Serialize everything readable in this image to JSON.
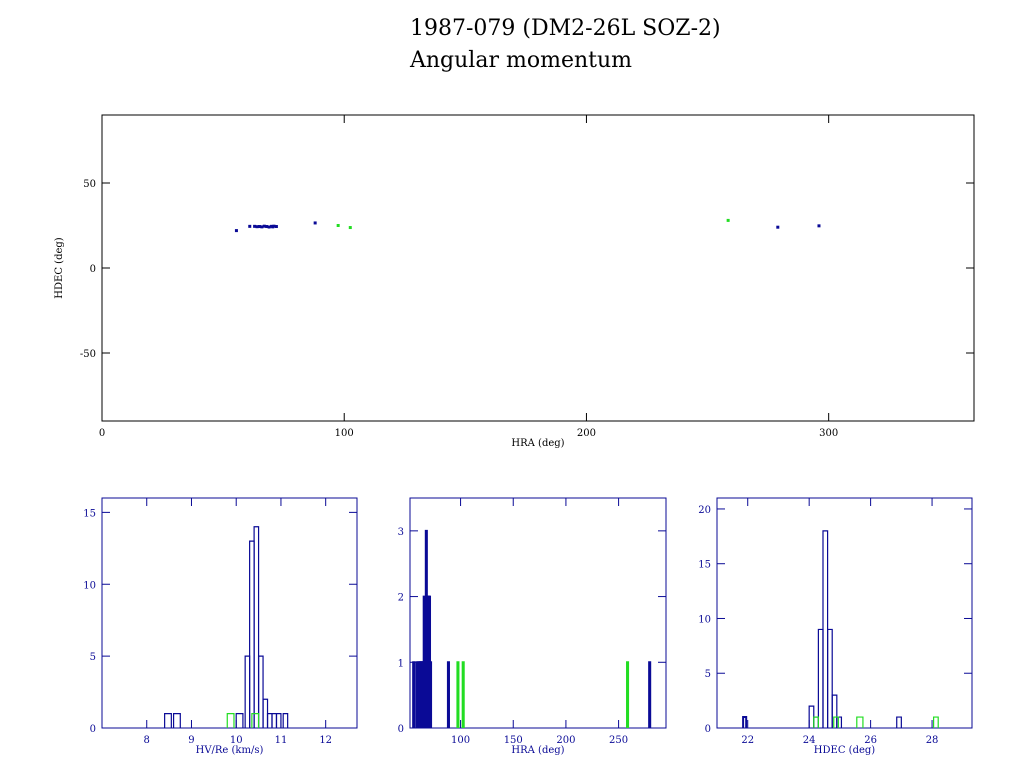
{
  "title_line1": "1987-079 (DM2-26L SOZ-2)",
  "title_line2": "Angular momentum",
  "colors": {
    "primary": "#0a0a96",
    "secondary": "#22dd22",
    "axes_main": "#000000",
    "axes_hist": "#0a0a96"
  },
  "chart_data": [
    {
      "type": "scatter",
      "xlabel": "HRA (deg)",
      "ylabel": "HDEC (deg)",
      "xlim": [
        0,
        360
      ],
      "ylim": [
        -90,
        90
      ],
      "xticks": [
        "0",
        "100",
        "200",
        "300"
      ],
      "yticks": [
        "-50",
        "0",
        "50"
      ],
      "series": [
        {
          "color": "#0a0a96",
          "points": [
            [
              55.5,
              22.0
            ],
            [
              61,
              24.5
            ],
            [
              63,
              24.5
            ],
            [
              64,
              24.3
            ],
            [
              65,
              24.4
            ],
            [
              66,
              24.2
            ],
            [
              67,
              24.6
            ],
            [
              68,
              24.4
            ],
            [
              69,
              24.1
            ],
            [
              70,
              24.5
            ],
            [
              70.5,
              24.2
            ],
            [
              71,
              24.6
            ],
            [
              72,
              24.4
            ],
            [
              88,
              26.5
            ],
            [
              279,
              24.0
            ],
            [
              296,
              24.8
            ]
          ]
        },
        {
          "color": "#22dd22",
          "points": [
            [
              97.5,
              25.0
            ],
            [
              102.5,
              23.8
            ],
            [
              258.5,
              28.0
            ]
          ]
        }
      ]
    },
    {
      "type": "histogram",
      "xlabel": "HV/Re (km/s)",
      "xlim": [
        7,
        12.7
      ],
      "ylim": [
        0,
        16
      ],
      "xticks": [
        "8",
        "9",
        "10",
        "11",
        "12"
      ],
      "yticks": [
        "0",
        "5",
        "10",
        "15"
      ],
      "series": [
        {
          "color": "#0a0a96",
          "bins": [
            [
              8.4,
              8.55,
              1
            ],
            [
              8.6,
              8.75,
              1
            ],
            [
              10.0,
              10.15,
              1
            ],
            [
              10.2,
              10.3,
              5
            ],
            [
              10.3,
              10.4,
              13
            ],
            [
              10.4,
              10.5,
              14
            ],
            [
              10.5,
              10.6,
              5
            ],
            [
              10.6,
              10.7,
              2
            ],
            [
              10.7,
              10.8,
              1
            ],
            [
              10.8,
              10.9,
              1
            ],
            [
              10.9,
              11.0,
              1
            ],
            [
              11.05,
              11.15,
              1
            ]
          ]
        },
        {
          "color": "#22dd22",
          "bins": [
            [
              9.8,
              9.95,
              1
            ],
            [
              10.35,
              10.5,
              1
            ]
          ]
        }
      ]
    },
    {
      "type": "histogram",
      "xlabel": "HRA (deg)",
      "xlim": [
        52,
        295
      ],
      "ylim": [
        0,
        3.5
      ],
      "xticks": [
        "100",
        "150",
        "200",
        "250"
      ],
      "yticks": [
        "0",
        "1",
        "2",
        "3"
      ],
      "series": [
        {
          "color": "#0a0a96",
          "bins": [
            [
              55,
              56,
              1
            ],
            [
              58,
              59,
              1
            ],
            [
              60,
              61,
              1
            ],
            [
              61,
              62,
              1
            ],
            [
              62,
              63,
              1
            ],
            [
              63,
              64,
              1
            ],
            [
              64,
              65,
              1
            ],
            [
              65,
              66,
              2
            ],
            [
              66,
              67,
              1
            ],
            [
              67,
              68,
              3
            ],
            [
              68,
              69,
              2
            ],
            [
              69,
              70,
              2
            ],
            [
              70,
              71,
              2
            ],
            [
              71,
              72,
              1
            ],
            [
              88,
              89,
              1
            ],
            [
              279,
              280,
              1
            ]
          ]
        },
        {
          "color": "#22dd22",
          "bins": [
            [
              97,
              98,
              1
            ],
            [
              102,
              103,
              1
            ],
            [
              258,
              259,
              1
            ]
          ]
        }
      ]
    },
    {
      "type": "histogram",
      "xlabel": "HDEC (deg)",
      "xlim": [
        21,
        29.3
      ],
      "ylim": [
        0,
        21
      ],
      "xticks": [
        "22",
        "24",
        "26",
        "28"
      ],
      "yticks": [
        "0",
        "5",
        "10",
        "15",
        "20"
      ],
      "series": [
        {
          "color": "#0a0a96",
          "bins": [
            [
              21.85,
              21.95,
              1
            ],
            [
              24.0,
              24.15,
              2
            ],
            [
              24.15,
              24.3,
              1
            ],
            [
              24.3,
              24.45,
              9
            ],
            [
              24.45,
              24.6,
              18
            ],
            [
              24.6,
              24.75,
              9
            ],
            [
              24.75,
              24.9,
              3
            ],
            [
              24.9,
              25.05,
              1
            ],
            [
              26.85,
              27.0,
              1
            ]
          ]
        },
        {
          "color": "#22dd22",
          "bins": [
            [
              24.15,
              24.3,
              1
            ],
            [
              24.8,
              24.95,
              1
            ],
            [
              25.55,
              25.75,
              1
            ],
            [
              28.05,
              28.2,
              1
            ]
          ]
        }
      ]
    }
  ]
}
